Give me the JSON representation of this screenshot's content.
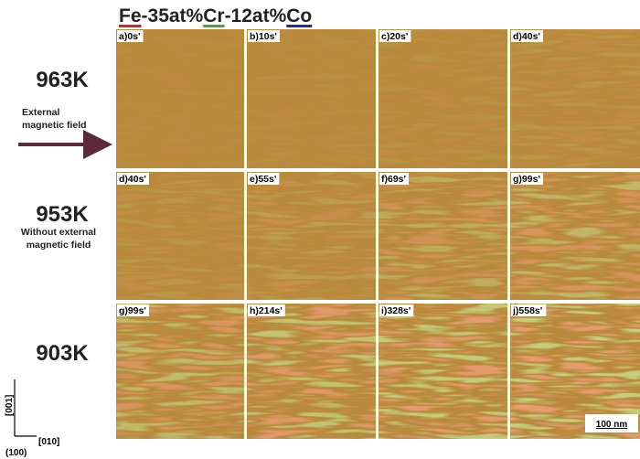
{
  "title": {
    "parts": [
      "Fe",
      "-35at%",
      "Cr",
      "-12at%",
      "Co"
    ]
  },
  "rows": [
    {
      "temperature": "963K",
      "note": [
        "External",
        "magnetic field"
      ],
      "panels": [
        "a)0s'",
        "b)10s'",
        "c)20s'",
        "d)40s'"
      ]
    },
    {
      "temperature": "953K",
      "note": [
        "Without external",
        "magnetic field"
      ],
      "panels": [
        "d)40s'",
        "e)55s'",
        "f)69s'",
        "g)99s'"
      ]
    },
    {
      "temperature": "903K",
      "panels": [
        "g)99s'",
        "h)214s'",
        "i)328s'",
        "j)558s'"
      ]
    }
  ],
  "axes": {
    "vertical": "[001]",
    "horizontal": "[010]",
    "plane": "(100)"
  },
  "scale_bar": "100 nm"
}
